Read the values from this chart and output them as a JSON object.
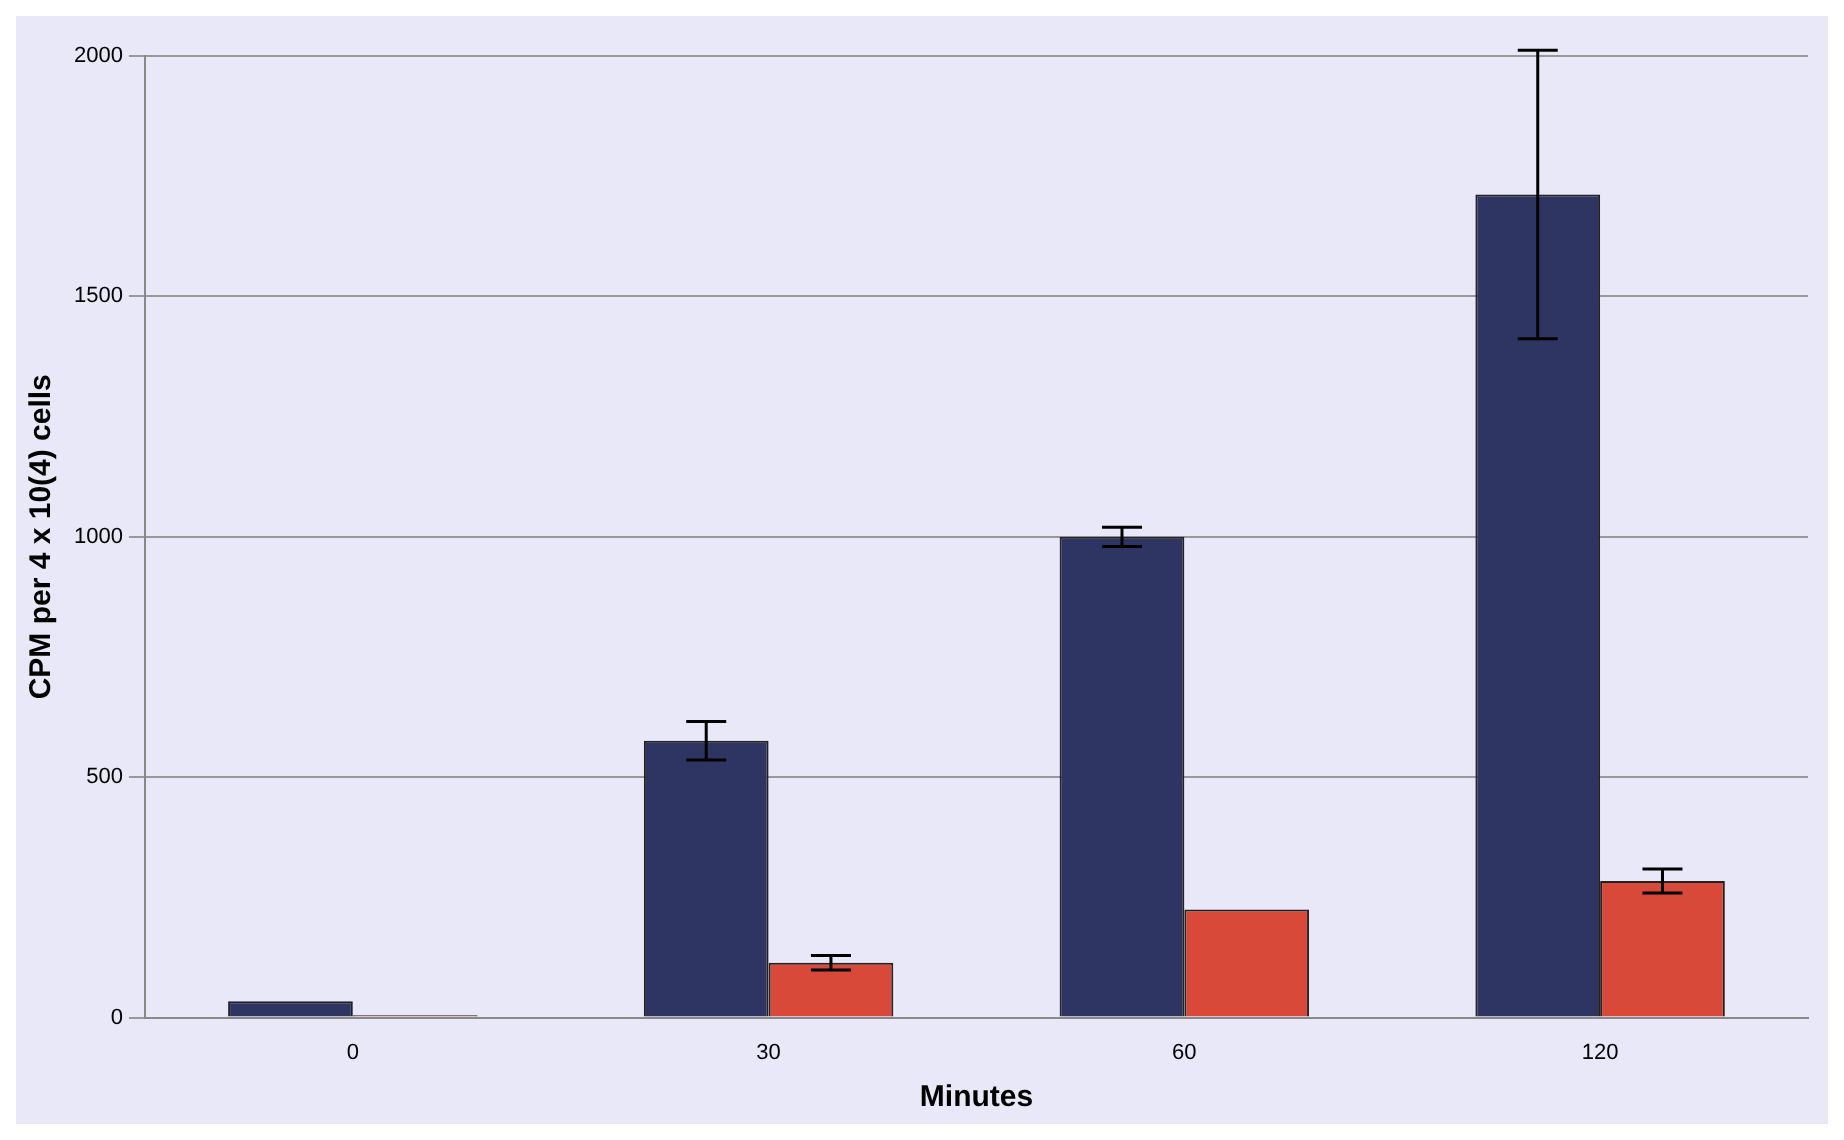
{
  "chart_data": {
    "type": "bar",
    "xlabel": "Minutes",
    "ylabel": "CPM per 4 x 10(4) cells",
    "categories": [
      "0",
      "30",
      "60",
      "120"
    ],
    "series": [
      {
        "color": "#2e3563",
        "values": [
          34,
          576,
          1000,
          1712
        ],
        "errors": [
          null,
          40,
          20,
          300
        ]
      },
      {
        "color": "#d9493a",
        "values": [
          5,
          114,
          225,
          284
        ],
        "errors": [
          null,
          15,
          null,
          25
        ]
      }
    ],
    "ylim": [
      0,
      2000
    ],
    "yticks": [
      0,
      500,
      1000,
      1500,
      2000
    ],
    "grid": "y",
    "legend": false
  }
}
